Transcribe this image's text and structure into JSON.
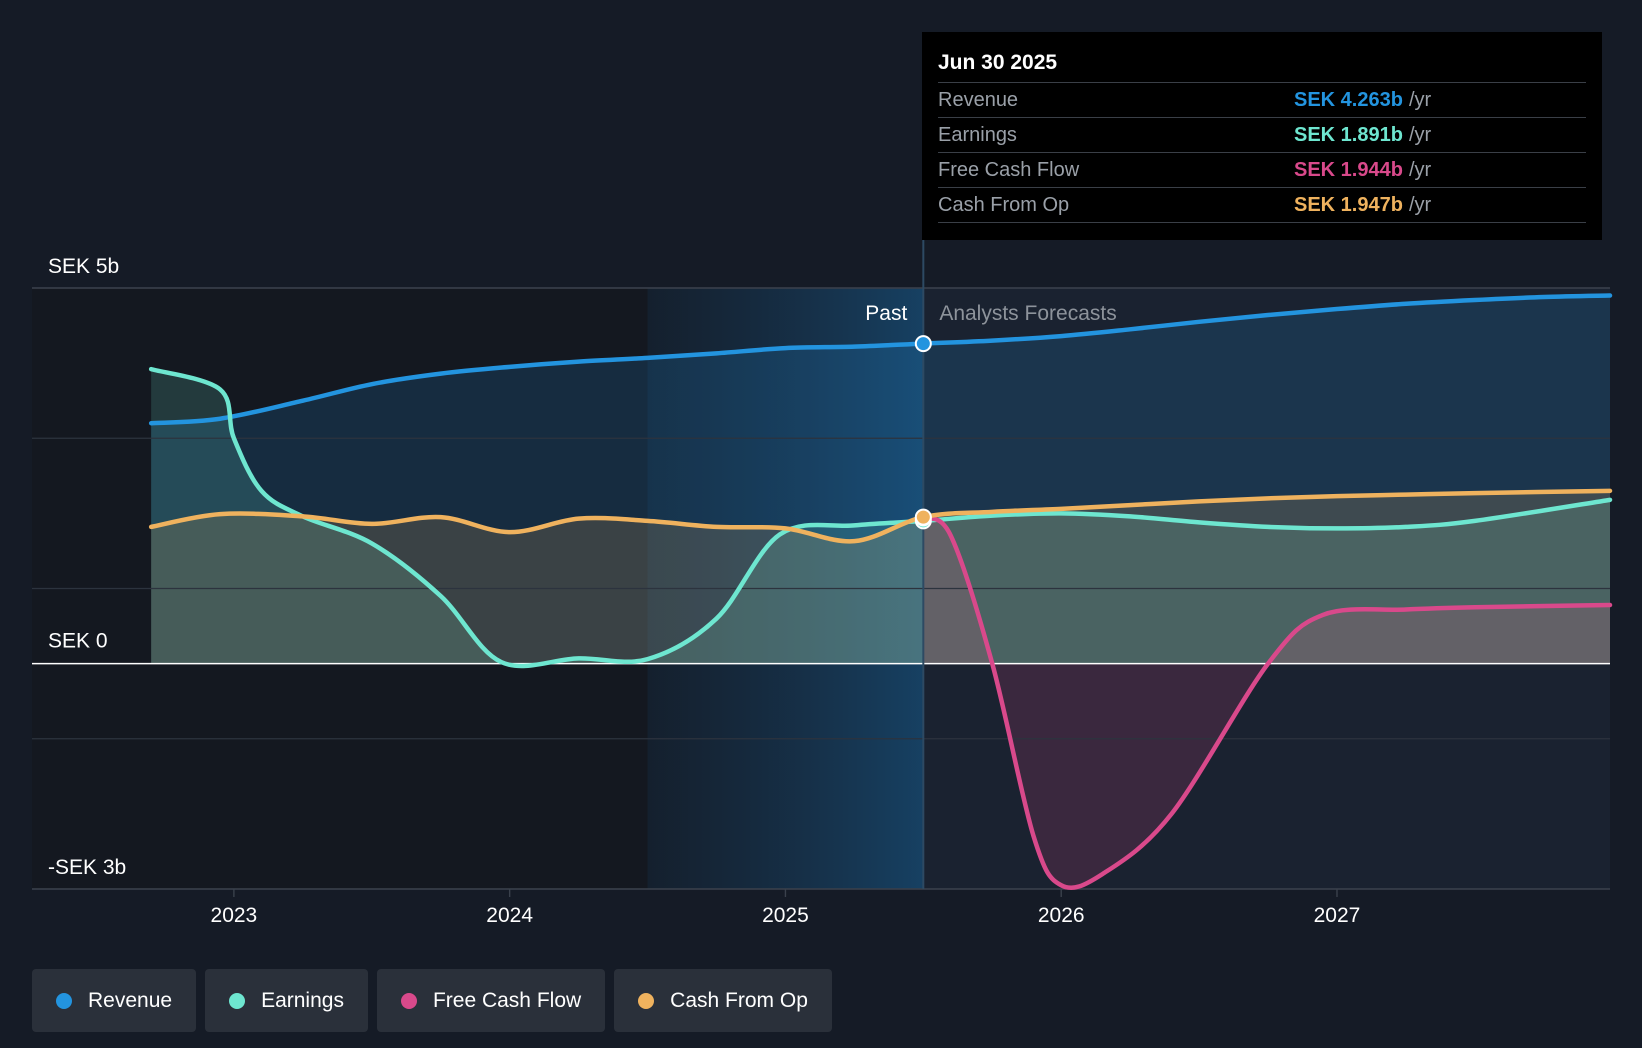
{
  "tooltip": {
    "date": "Jun 30 2025",
    "rows": [
      {
        "label": "Revenue",
        "value": "SEK 4.263b",
        "unit": "/yr",
        "color": "#2394df"
      },
      {
        "label": "Earnings",
        "value": "SEK 1.891b",
        "unit": "/yr",
        "color": "#6ee6d0"
      },
      {
        "label": "Free Cash Flow",
        "value": "SEK 1.944b",
        "unit": "/yr",
        "color": "#d9498b"
      },
      {
        "label": "Cash From Op",
        "value": "SEK 1.947b",
        "unit": "/yr",
        "color": "#efb25e"
      }
    ]
  },
  "past_label": "Past",
  "forecast_label": "Analysts Forecasts",
  "legend": [
    {
      "label": "Revenue",
      "color": "#2394df"
    },
    {
      "label": "Earnings",
      "color": "#6ee6d0"
    },
    {
      "label": "Free Cash Flow",
      "color": "#d9498b"
    },
    {
      "label": "Cash From Op",
      "color": "#efb25e"
    }
  ],
  "chart_data": {
    "type": "line",
    "y_tick_labels": [
      "SEK 5b",
      "SEK 0",
      "-SEK 3b"
    ],
    "x_tick_labels": [
      "2023",
      "2024",
      "2025",
      "2026",
      "2027"
    ],
    "ylim": [
      -3,
      5
    ],
    "xlim": [
      2022.5,
      2027.99
    ],
    "divider_x": 2025.5,
    "highlight_start_x": 2024.5,
    "grid": true,
    "series": [
      {
        "name": "Revenue",
        "color": "#2394df",
        "points": [
          [
            2022.7,
            3.2
          ],
          [
            2022.95,
            3.26
          ],
          [
            2023.25,
            3.5
          ],
          [
            2023.5,
            3.72
          ],
          [
            2023.75,
            3.86
          ],
          [
            2024.0,
            3.95
          ],
          [
            2024.25,
            4.02
          ],
          [
            2024.5,
            4.07
          ],
          [
            2024.75,
            4.13
          ],
          [
            2025.0,
            4.2
          ],
          [
            2025.25,
            4.22
          ],
          [
            2025.5,
            4.26
          ],
          [
            2025.75,
            4.3
          ],
          [
            2026.0,
            4.36
          ],
          [
            2026.25,
            4.45
          ],
          [
            2026.5,
            4.55
          ],
          [
            2026.75,
            4.64
          ],
          [
            2027.0,
            4.72
          ],
          [
            2027.25,
            4.79
          ],
          [
            2027.5,
            4.84
          ],
          [
            2027.75,
            4.88
          ],
          [
            2027.99,
            4.9
          ]
        ]
      },
      {
        "name": "Earnings",
        "color": "#6ee6d0",
        "points": [
          [
            2022.7,
            3.92
          ],
          [
            2022.95,
            3.65
          ],
          [
            2023.0,
            3.0
          ],
          [
            2023.1,
            2.3
          ],
          [
            2023.25,
            1.96
          ],
          [
            2023.5,
            1.6
          ],
          [
            2023.75,
            0.9
          ],
          [
            2023.97,
            0.02
          ],
          [
            2024.25,
            0.07
          ],
          [
            2024.5,
            0.06
          ],
          [
            2024.75,
            0.6
          ],
          [
            2024.98,
            1.72
          ],
          [
            2025.25,
            1.84
          ],
          [
            2025.5,
            1.9
          ],
          [
            2025.75,
            1.97
          ],
          [
            2026.0,
            2.0
          ],
          [
            2026.25,
            1.96
          ],
          [
            2026.5,
            1.88
          ],
          [
            2026.75,
            1.82
          ],
          [
            2027.0,
            1.8
          ],
          [
            2027.25,
            1.82
          ],
          [
            2027.5,
            1.9
          ],
          [
            2027.99,
            2.18
          ]
        ]
      },
      {
        "name": "Free Cash Flow",
        "color": "#d9498b",
        "points": [
          [
            2025.5,
            1.94
          ],
          [
            2025.6,
            1.7
          ],
          [
            2025.75,
            0.0
          ],
          [
            2025.9,
            -2.3
          ],
          [
            2026.0,
            -2.95
          ],
          [
            2026.15,
            -2.8
          ],
          [
            2026.4,
            -2.0
          ],
          [
            2026.75,
            0.0
          ],
          [
            2026.95,
            0.65
          ],
          [
            2027.25,
            0.72
          ],
          [
            2027.5,
            0.75
          ],
          [
            2027.99,
            0.78
          ]
        ]
      },
      {
        "name": "Cash From Op",
        "color": "#efb25e",
        "points": [
          [
            2022.7,
            1.82
          ],
          [
            2022.95,
            1.99
          ],
          [
            2023.25,
            1.96
          ],
          [
            2023.5,
            1.86
          ],
          [
            2023.75,
            1.95
          ],
          [
            2024.0,
            1.75
          ],
          [
            2024.25,
            1.93
          ],
          [
            2024.5,
            1.9
          ],
          [
            2024.75,
            1.82
          ],
          [
            2025.0,
            1.8
          ],
          [
            2025.25,
            1.63
          ],
          [
            2025.5,
            1.95
          ],
          [
            2025.75,
            2.02
          ],
          [
            2026.0,
            2.06
          ],
          [
            2026.25,
            2.11
          ],
          [
            2026.5,
            2.16
          ],
          [
            2026.75,
            2.2
          ],
          [
            2027.0,
            2.23
          ],
          [
            2027.25,
            2.25
          ],
          [
            2027.5,
            2.27
          ],
          [
            2027.99,
            2.3
          ]
        ]
      }
    ]
  }
}
